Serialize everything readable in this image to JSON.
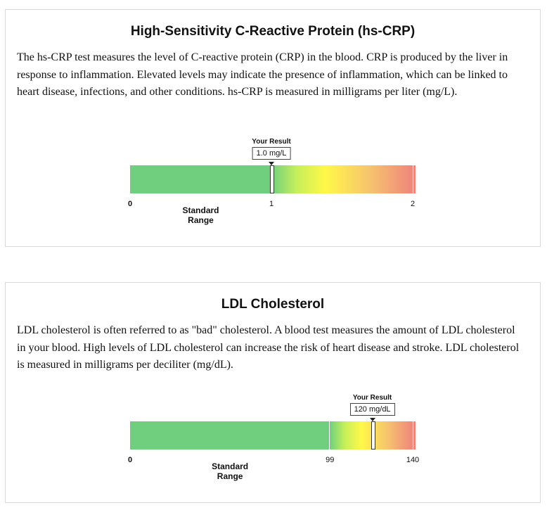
{
  "cards": [
    {
      "title": "High-Sensitivity C-Reactive Protein (hs-CRP)",
      "description": "The hs-CRP test measures the level of C-reactive protein (CRP) in the blood. CRP is produced by the liver in response to inflammation. Elevated levels may indicate the presence of inflammation, which can be linked to heart disease, infections, and other conditions. hs-CRP is measured in milligrams per liter (mg/L).",
      "gauge": {
        "result_label": "Your Result",
        "result_value": "1.0 mg/L",
        "result": 1.0,
        "min": 0,
        "max": 2,
        "standard_range": [
          0,
          1
        ],
        "standard_range_label": "Standard Range",
        "tick_labels": [
          "0",
          "1",
          "2"
        ],
        "colors": {
          "standard": "#6fcf7f",
          "high": "#f0857c"
        }
      }
    },
    {
      "title": "LDL Cholesterol",
      "description": "LDL cholesterol is often referred to as \"bad\" cholesterol. A blood test measures the amount of LDL cholesterol in your blood. High levels of LDL cholesterol can increase the risk of heart disease and stroke. LDL cholesterol is measured in milligrams per deciliter (mg/dL).",
      "gauge": {
        "result_label": "Your Result",
        "result_value": "120 mg/dL",
        "result": 120,
        "min": 0,
        "max": 140,
        "standard_range": [
          0,
          99
        ],
        "standard_range_label": "Standard Range",
        "tick_labels": [
          "0",
          "99",
          "140"
        ],
        "colors": {
          "standard": "#6fcf7f",
          "high": "#f0857c"
        }
      }
    }
  ]
}
